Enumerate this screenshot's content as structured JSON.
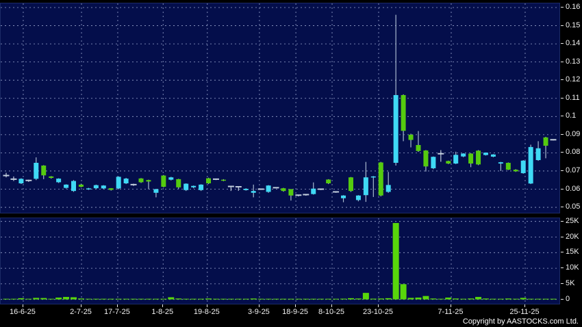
{
  "meta": {
    "copyright": "Copyright by AASTOCKS.com Ltd."
  },
  "colors": {
    "page_background": "#000000",
    "panel_background": "#040e4b",
    "grid": "#9aa6cf",
    "up_candle": "#3fd9f5",
    "down_candle": "#55cb0f",
    "doji_dash": "#c2cedd",
    "wick": "#a9bacf",
    "volume_bar": "#58d60b",
    "axis_text": "#f2f2f2"
  },
  "chart_data": {
    "type": "candlestick_with_volume",
    "title": "",
    "price_axis": {
      "min": 0.05,
      "max": 0.16,
      "ticks": [
        "0.16",
        "0.15",
        "0.14",
        "0.13",
        "0.12",
        "0.11",
        "0.1",
        "0.09",
        "0.08",
        "0.07",
        "0.06",
        "0.05"
      ],
      "tick_values": [
        0.16,
        0.15,
        0.14,
        0.13,
        0.12,
        0.11,
        0.1,
        0.09,
        0.08,
        0.07,
        0.06,
        0.05
      ]
    },
    "volume_axis": {
      "ticks": [
        "25K",
        "20K",
        "15K",
        "10K",
        "5K",
        "0"
      ],
      "tick_values": [
        25,
        20,
        15,
        10,
        5,
        0
      ]
    },
    "x_labels": [
      {
        "label": "16-6-25",
        "pos": 0.0403
      },
      {
        "label": "2-7-25",
        "pos": 0.1443
      },
      {
        "label": "17-7-25",
        "pos": 0.209
      },
      {
        "label": "1-8-25",
        "pos": 0.29
      },
      {
        "label": "19-8-25",
        "pos": 0.369
      },
      {
        "label": "3-9-25",
        "pos": 0.462
      },
      {
        "label": "18-9-25",
        "pos": 0.527
      },
      {
        "label": "8-10-25",
        "pos": 0.5917
      },
      {
        "label": "23-10-25",
        "pos": 0.6748
      },
      {
        "label": "7-11-25",
        "pos": 0.8044
      },
      {
        "label": "25-11-25",
        "pos": 0.9364
      }
    ],
    "legend": null,
    "grid": true,
    "candles": [
      {
        "o": 0.0675,
        "h": 0.069,
        "l": 0.0665,
        "c": 0.0675,
        "v": 0.1
      },
      {
        "o": 0.0655,
        "h": 0.067,
        "l": 0.0645,
        "c": 0.0655,
        "v": 0.05
      },
      {
        "o": 0.0632,
        "h": 0.066,
        "l": 0.0628,
        "c": 0.0657,
        "v": 0.4
      },
      {
        "o": 0.0648,
        "h": 0.0652,
        "l": 0.064,
        "c": 0.0648,
        "v": 0.1
      },
      {
        "o": 0.0657,
        "h": 0.0775,
        "l": 0.065,
        "c": 0.0745,
        "v": 0.5
      },
      {
        "o": 0.073,
        "h": 0.0732,
        "l": 0.0655,
        "c": 0.0676,
        "v": 0.45
      },
      {
        "o": 0.067,
        "h": 0.0672,
        "l": 0.0658,
        "c": 0.0662,
        "v": 0.2
      },
      {
        "o": 0.0638,
        "h": 0.066,
        "l": 0.0634,
        "c": 0.0658,
        "v": 0.6
      },
      {
        "o": 0.0607,
        "h": 0.0627,
        "l": 0.0603,
        "c": 0.0625,
        "v": 0.8
      },
      {
        "o": 0.059,
        "h": 0.065,
        "l": 0.0585,
        "c": 0.0645,
        "v": 0.7
      },
      {
        "o": 0.0625,
        "h": 0.063,
        "l": 0.061,
        "c": 0.0613,
        "v": 0.3
      },
      {
        "o": 0.06,
        "h": 0.0607,
        "l": 0.0596,
        "c": 0.0604,
        "v": 0.2
      },
      {
        "o": 0.0605,
        "h": 0.0625,
        "l": 0.06,
        "c": 0.0622,
        "v": 0.1
      },
      {
        "o": 0.0604,
        "h": 0.0622,
        "l": 0.06,
        "c": 0.062,
        "v": 0.1
      },
      {
        "o": 0.0605,
        "h": 0.0606,
        "l": 0.0592,
        "c": 0.0596,
        "v": 0.08
      },
      {
        "o": 0.0604,
        "h": 0.067,
        "l": 0.06,
        "c": 0.0668,
        "v": 0.15
      },
      {
        "o": 0.0632,
        "h": 0.0662,
        "l": 0.0628,
        "c": 0.0658,
        "v": 0.1
      },
      {
        "o": 0.0625,
        "h": 0.063,
        "l": 0.0618,
        "c": 0.0625,
        "v": 0.05
      },
      {
        "o": 0.0659,
        "h": 0.0661,
        "l": 0.0634,
        "c": 0.0638,
        "v": 0.1
      },
      {
        "o": 0.065,
        "h": 0.0652,
        "l": 0.06,
        "c": 0.0642,
        "v": 0.12
      },
      {
        "o": 0.058,
        "h": 0.0602,
        "l": 0.0555,
        "c": 0.06,
        "v": 0.1
      },
      {
        "o": 0.0675,
        "h": 0.0678,
        "l": 0.061,
        "c": 0.0613,
        "v": 0.2
      },
      {
        "o": 0.0652,
        "h": 0.0668,
        "l": 0.0648,
        "c": 0.0665,
        "v": 0.7
      },
      {
        "o": 0.0655,
        "h": 0.0657,
        "l": 0.0602,
        "c": 0.061,
        "v": 0.3
      },
      {
        "o": 0.0595,
        "h": 0.0632,
        "l": 0.059,
        "c": 0.063,
        "v": 0.2
      },
      {
        "o": 0.061,
        "h": 0.062,
        "l": 0.0605,
        "c": 0.0618,
        "v": 0.1
      },
      {
        "o": 0.0595,
        "h": 0.0627,
        "l": 0.059,
        "c": 0.0625,
        "v": 0.15
      },
      {
        "o": 0.066,
        "h": 0.0663,
        "l": 0.0628,
        "c": 0.0632,
        "v": 0.3
      },
      {
        "o": 0.0655,
        "h": 0.0658,
        "l": 0.065,
        "c": 0.0655,
        "v": 0.1
      },
      {
        "o": 0.0652,
        "h": 0.0655,
        "l": 0.0644,
        "c": 0.0648,
        "v": 0.15
      },
      {
        "o": 0.0615,
        "h": 0.0617,
        "l": 0.059,
        "c": 0.0615,
        "v": 0.15
      },
      {
        "o": 0.0613,
        "h": 0.0615,
        "l": 0.0591,
        "c": 0.0613,
        "v": 0.1
      },
      {
        "o": 0.0595,
        "h": 0.0605,
        "l": 0.0592,
        "c": 0.0602,
        "v": 0.2
      },
      {
        "o": 0.058,
        "h": 0.0625,
        "l": 0.0555,
        "c": 0.059,
        "v": 0.3
      },
      {
        "o": 0.06,
        "h": 0.0602,
        "l": 0.0596,
        "c": 0.06,
        "v": 0.1
      },
      {
        "o": 0.0585,
        "h": 0.0622,
        "l": 0.058,
        "c": 0.062,
        "v": 0.15
      },
      {
        "o": 0.0608,
        "h": 0.061,
        "l": 0.0604,
        "c": 0.0608,
        "v": 0.08
      },
      {
        "o": 0.0605,
        "h": 0.0607,
        "l": 0.0586,
        "c": 0.059,
        "v": 0.1
      },
      {
        "o": 0.06,
        "h": 0.0601,
        "l": 0.0537,
        "c": 0.0565,
        "v": 0.15
      },
      {
        "o": 0.0567,
        "h": 0.057,
        "l": 0.056,
        "c": 0.0567,
        "v": 0.05
      },
      {
        "o": 0.057,
        "h": 0.0572,
        "l": 0.0564,
        "c": 0.057,
        "v": 0.05
      },
      {
        "o": 0.0573,
        "h": 0.0637,
        "l": 0.057,
        "c": 0.0603,
        "v": 0.2
      },
      {
        "o": 0.06,
        "h": 0.0602,
        "l": 0.0595,
        "c": 0.06,
        "v": 0.08
      },
      {
        "o": 0.0653,
        "h": 0.0655,
        "l": 0.0628,
        "c": 0.0632,
        "v": 0.15
      },
      {
        "o": 0.0585,
        "h": 0.0587,
        "l": 0.058,
        "c": 0.0585,
        "v": 0.1
      },
      {
        "o": 0.055,
        "h": 0.0567,
        "l": 0.0528,
        "c": 0.0565,
        "v": 0.25
      },
      {
        "o": 0.0665,
        "h": 0.0667,
        "l": 0.0585,
        "c": 0.059,
        "v": 0.4
      },
      {
        "o": 0.054,
        "h": 0.0567,
        "l": 0.0533,
        "c": 0.0565,
        "v": 0.3
      },
      {
        "o": 0.0567,
        "h": 0.075,
        "l": 0.053,
        "c": 0.0665,
        "v": 2.1
      },
      {
        "o": 0.0665,
        "h": 0.0672,
        "l": 0.0557,
        "c": 0.067,
        "v": 0.25
      },
      {
        "o": 0.0747,
        "h": 0.075,
        "l": 0.056,
        "c": 0.0565,
        "v": 0.3
      },
      {
        "o": 0.0585,
        "h": 0.0695,
        "l": 0.058,
        "c": 0.0623,
        "v": 0.4
      },
      {
        "o": 0.0745,
        "h": 0.156,
        "l": 0.073,
        "c": 0.1118,
        "v": 24.5
      },
      {
        "o": 0.1118,
        "h": 0.1122,
        "l": 0.0864,
        "c": 0.0921,
        "v": 4.9
      },
      {
        "o": 0.09,
        "h": 0.0905,
        "l": 0.083,
        "c": 0.0871,
        "v": 0.5
      },
      {
        "o": 0.0843,
        "h": 0.092,
        "l": 0.0805,
        "c": 0.081,
        "v": 0.6
      },
      {
        "o": 0.0813,
        "h": 0.0815,
        "l": 0.0697,
        "c": 0.0725,
        "v": 1.1
      },
      {
        "o": 0.0715,
        "h": 0.078,
        "l": 0.071,
        "c": 0.0778,
        "v": 0.3
      },
      {
        "o": 0.0795,
        "h": 0.0815,
        "l": 0.0751,
        "c": 0.0795,
        "v": 0.2
      },
      {
        "o": 0.0755,
        "h": 0.0757,
        "l": 0.0738,
        "c": 0.0741,
        "v": 0.6
      },
      {
        "o": 0.0741,
        "h": 0.0806,
        "l": 0.0738,
        "c": 0.0789,
        "v": 0.3
      },
      {
        "o": 0.078,
        "h": 0.0798,
        "l": 0.0776,
        "c": 0.0796,
        "v": 0.2
      },
      {
        "o": 0.0796,
        "h": 0.0798,
        "l": 0.0721,
        "c": 0.0741,
        "v": 0.3
      },
      {
        "o": 0.0812,
        "h": 0.0815,
        "l": 0.0732,
        "c": 0.0736,
        "v": 0.8
      },
      {
        "o": 0.0788,
        "h": 0.0802,
        "l": 0.0785,
        "c": 0.0801,
        "v": 0.3
      },
      {
        "o": 0.0779,
        "h": 0.0793,
        "l": 0.0776,
        "c": 0.0791,
        "v": 0.2
      },
      {
        "o": 0.0741,
        "h": 0.075,
        "l": 0.07,
        "c": 0.0748,
        "v": 0.2
      },
      {
        "o": 0.0745,
        "h": 0.0747,
        "l": 0.0705,
        "c": 0.0707,
        "v": 0.3
      },
      {
        "o": 0.0707,
        "h": 0.071,
        "l": 0.0695,
        "c": 0.0698,
        "v": 0.15
      },
      {
        "o": 0.0688,
        "h": 0.076,
        "l": 0.0685,
        "c": 0.0757,
        "v": 0.5
      },
      {
        "o": 0.0631,
        "h": 0.0845,
        "l": 0.0628,
        "c": 0.0832,
        "v": 0.2
      },
      {
        "o": 0.076,
        "h": 0.0864,
        "l": 0.0756,
        "c": 0.0825,
        "v": 0.2
      },
      {
        "o": 0.0885,
        "h": 0.0888,
        "l": 0.077,
        "c": 0.0839,
        "v": 0.15
      },
      {
        "o": 0.0872,
        "h": 0.0875,
        "l": 0.0868,
        "c": 0.0872,
        "v": 0.1
      }
    ]
  }
}
